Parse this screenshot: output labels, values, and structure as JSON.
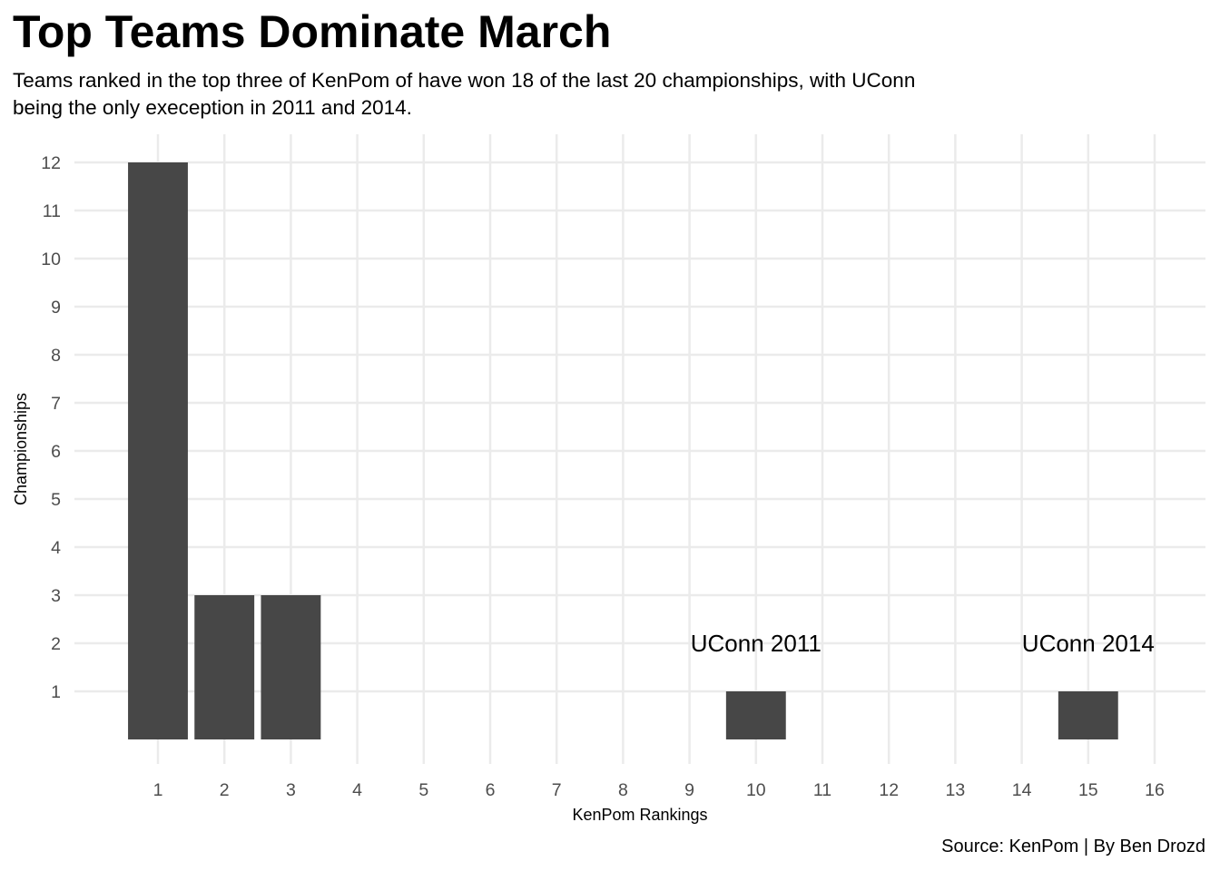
{
  "title": "Top Teams Dominate March",
  "subtitle": "Teams ranked in the top three of KenPom of have won 18 of the last 20 championships, with UConn being the only exeception in 2011 and 2014.",
  "caption": "Source: KenPom | By Ben Drozd",
  "chart_data": {
    "type": "bar",
    "title": "Top Teams Dominate March",
    "subtitle": "Teams ranked in the top three of KenPom of have won 18 of the last 20 championships, with UConn being the only exeception in 2011 and 2014.",
    "xlabel": "KenPom Rankings",
    "ylabel": "Championships",
    "x_ticks": [
      1,
      2,
      3,
      4,
      5,
      6,
      7,
      8,
      9,
      10,
      11,
      12,
      13,
      14,
      15,
      16
    ],
    "y_ticks": [
      1,
      2,
      3,
      4,
      5,
      6,
      7,
      8,
      9,
      10,
      11,
      12
    ],
    "xlim": [
      0.5,
      16.5
    ],
    "ylim": [
      0,
      12
    ],
    "bars": [
      {
        "x": 1,
        "value": 12
      },
      {
        "x": 2,
        "value": 3
      },
      {
        "x": 3,
        "value": 3
      },
      {
        "x": 10,
        "value": 1
      },
      {
        "x": 15,
        "value": 1
      }
    ],
    "bar_color": "#474747",
    "grid": true,
    "annotations": [
      {
        "x": 10,
        "y": 2,
        "text": "UConn 2011"
      },
      {
        "x": 15,
        "y": 2,
        "text": "UConn 2014"
      }
    ],
    "caption": "Source: KenPom | By Ben Drozd"
  }
}
